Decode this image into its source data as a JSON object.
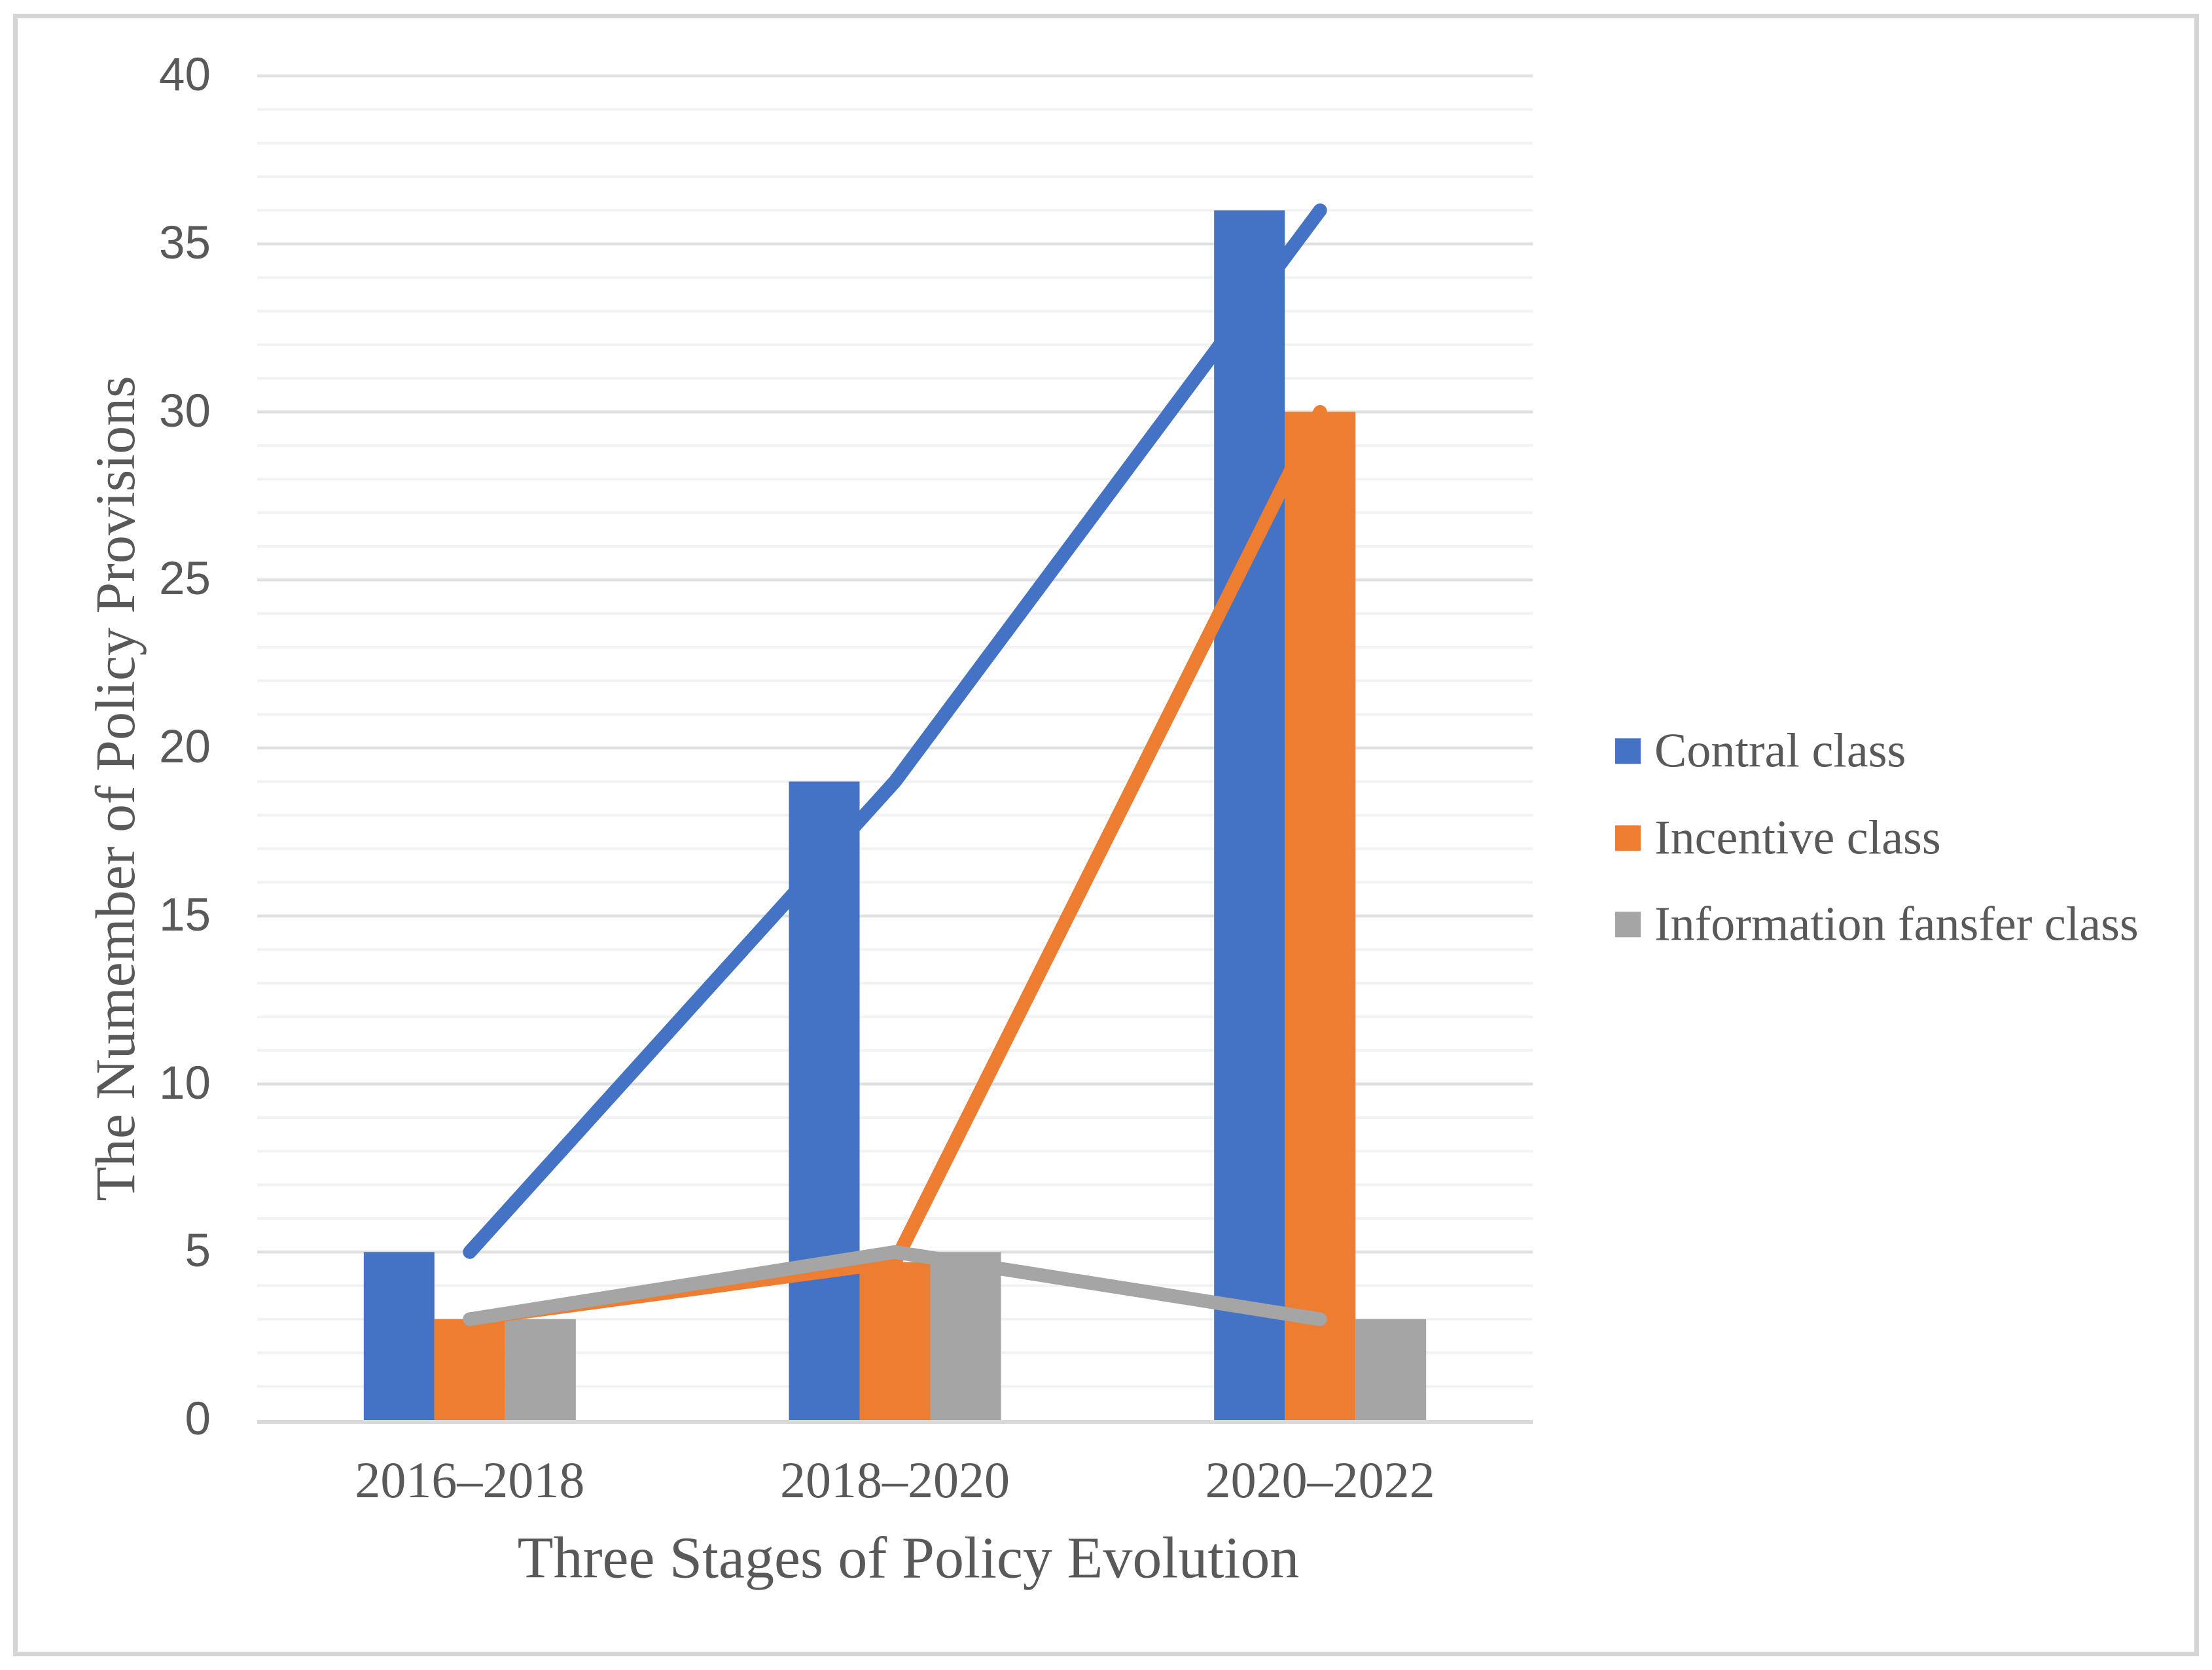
{
  "chart_data": {
    "type": "bar",
    "subtype": "clustered-bars-with-line-overlay",
    "categories": [
      "2016–2018",
      "2018–2020",
      "2020–2022"
    ],
    "series": [
      {
        "name": "Contral class",
        "color": "#4472C4",
        "bar_values": [
          5,
          19,
          36
        ],
        "line_values": [
          5,
          19,
          36
        ]
      },
      {
        "name": "Incentive class",
        "color": "#ED7D31",
        "bar_values": [
          3,
          4.7,
          30
        ],
        "line_values": [
          3,
          4.7,
          30
        ]
      },
      {
        "name": "Information fansfer class",
        "color": "#A5A5A5",
        "bar_values": [
          3,
          5,
          3
        ],
        "line_values": [
          3,
          5,
          3
        ]
      }
    ],
    "title": "",
    "xlabel": "Three Stages of Policy Evolution",
    "ylabel": "The Numember of Policy Provisions",
    "ylim": [
      0,
      40
    ],
    "y_major_ticks": [
      0,
      5,
      10,
      15,
      20,
      25,
      30,
      35,
      40
    ],
    "y_minor_step": 1,
    "grid": {
      "horizontal": true,
      "minor_color": "#f2f2f2",
      "major_color": "#e0e0e0",
      "axis_line_color": "#d9d9d9"
    },
    "legend_position": "right",
    "text_color": "#595959",
    "border_color": "#d5d5d5",
    "background": "#ffffff"
  }
}
